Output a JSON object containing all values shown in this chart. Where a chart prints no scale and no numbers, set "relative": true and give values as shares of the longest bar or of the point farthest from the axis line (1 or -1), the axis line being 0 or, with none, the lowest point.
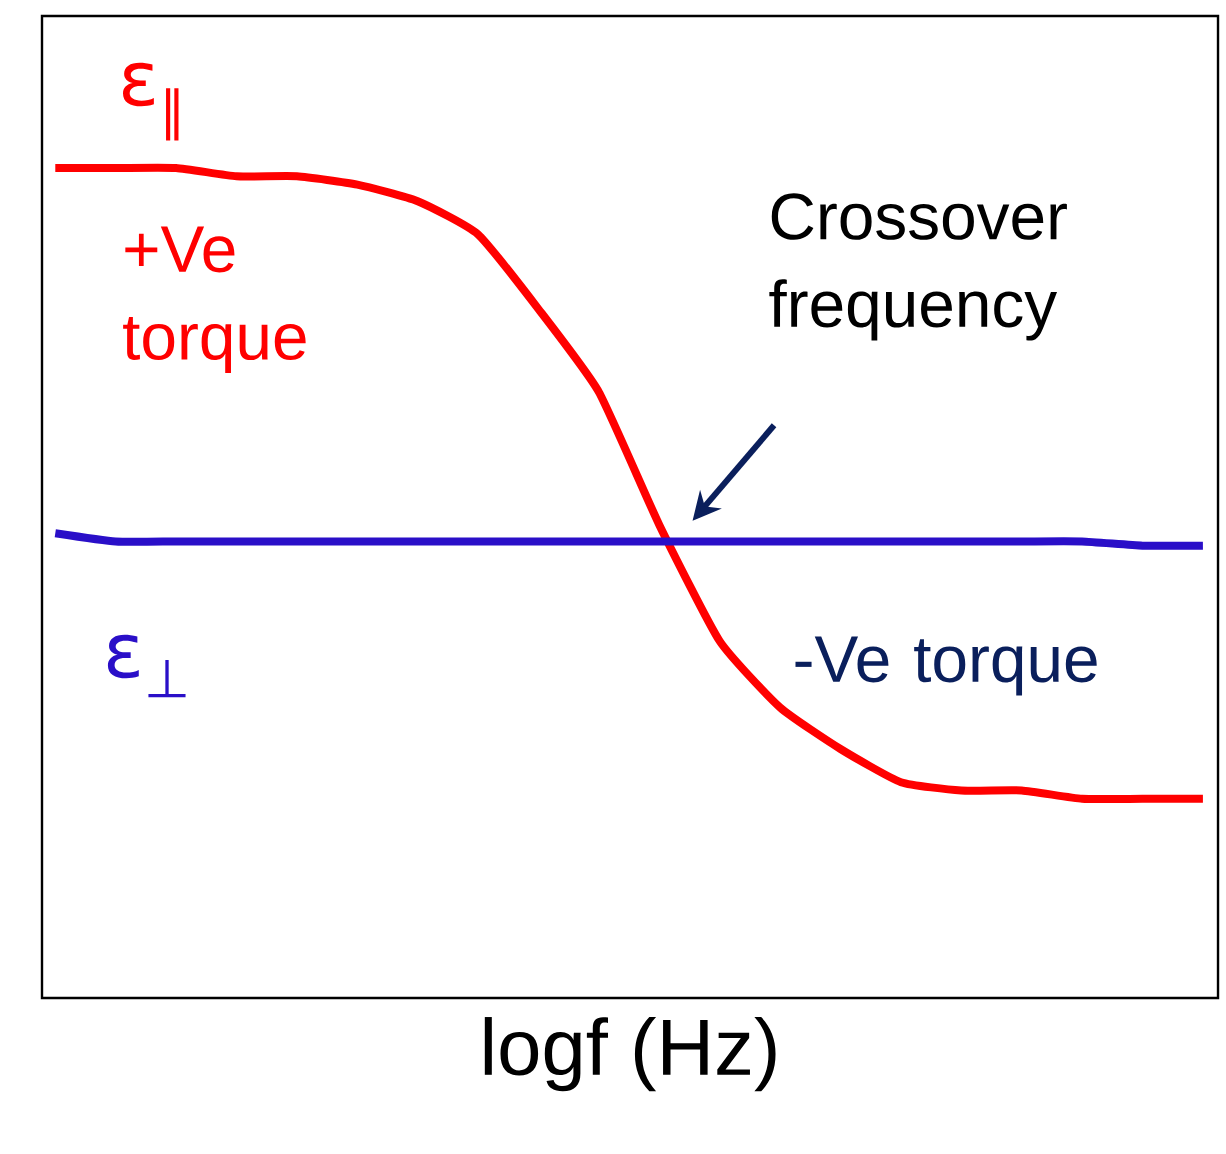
{
  "chart_data": {
    "type": "line",
    "relative": true,
    "xlabel": "logf (Hz)",
    "categories": [
      null,
      null,
      null,
      null,
      null,
      null,
      null,
      null,
      null,
      null,
      null,
      null,
      null,
      null,
      null,
      null,
      null,
      null,
      null,
      null
    ],
    "series": [
      {
        "name": "ε$_{∥}$",
        "color": "#ff0000",
        "values": [
          1.0,
          1.0,
          1.0,
          0.99,
          0.99,
          0.98,
          0.96,
          0.92,
          0.83,
          0.73,
          0.57,
          0.43,
          0.35,
          0.3,
          0.26,
          0.25,
          0.25,
          0.24,
          0.24,
          0.24
        ]
      },
      {
        "name": "ε$_{⊥}$",
        "color": "#2a0fc8",
        "values": [
          0.56,
          0.55,
          0.55,
          0.55,
          0.55,
          0.55,
          0.55,
          0.55,
          0.55,
          0.55,
          0.55,
          0.55,
          0.55,
          0.55,
          0.55,
          0.55,
          0.55,
          0.55,
          0.545,
          0.545
        ]
      }
    ],
    "annotations": [
      "+Ve torque",
      "Crossover frequency",
      "-Ve torque"
    ]
  }
}
